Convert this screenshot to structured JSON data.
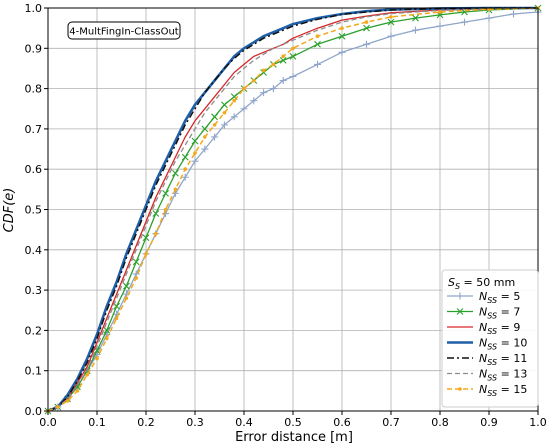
{
  "chart_data": {
    "type": "line",
    "xlabel": "Error distance [m]",
    "ylabel": "CDF(e)",
    "xlim": [
      0.0,
      1.0
    ],
    "ylim": [
      0.0,
      1.0
    ],
    "xticks": [
      "0.0",
      "0.1",
      "0.2",
      "0.3",
      "0.4",
      "0.5",
      "0.6",
      "0.7",
      "0.8",
      "0.9",
      "1.0"
    ],
    "yticks": [
      "0.0",
      "0.1",
      "0.2",
      "0.3",
      "0.4",
      "0.5",
      "0.6",
      "0.7",
      "0.8",
      "0.9",
      "1.0"
    ],
    "grid": true,
    "annotation": "4-MultFingIn-ClassOut",
    "legend_title": "S_S = 50 mm",
    "legend_position": "lower-right",
    "series": [
      {
        "name": "N_SS = 5",
        "color": "#8fa5c8",
        "dash": "",
        "width": 1.3,
        "marker": "plus",
        "x": [
          0.0,
          0.02,
          0.04,
          0.06,
          0.08,
          0.1,
          0.12,
          0.14,
          0.16,
          0.18,
          0.2,
          0.22,
          0.24,
          0.26,
          0.28,
          0.3,
          0.32,
          0.34,
          0.36,
          0.38,
          0.4,
          0.42,
          0.44,
          0.46,
          0.48,
          0.5,
          0.55,
          0.6,
          0.65,
          0.7,
          0.75,
          0.8,
          0.85,
          0.9,
          0.95,
          1.0
        ],
        "values": [
          0.0,
          0.01,
          0.03,
          0.06,
          0.1,
          0.14,
          0.19,
          0.24,
          0.29,
          0.34,
          0.39,
          0.44,
          0.49,
          0.54,
          0.58,
          0.62,
          0.65,
          0.68,
          0.71,
          0.73,
          0.75,
          0.77,
          0.79,
          0.8,
          0.82,
          0.83,
          0.86,
          0.89,
          0.91,
          0.93,
          0.945,
          0.955,
          0.965,
          0.975,
          0.985,
          0.99
        ]
      },
      {
        "name": "N_SS = 7",
        "color": "#2ca02c",
        "dash": "",
        "width": 1.3,
        "marker": "x",
        "x": [
          0.0,
          0.02,
          0.04,
          0.06,
          0.08,
          0.1,
          0.12,
          0.14,
          0.16,
          0.18,
          0.2,
          0.22,
          0.24,
          0.26,
          0.28,
          0.3,
          0.32,
          0.34,
          0.36,
          0.38,
          0.4,
          0.42,
          0.44,
          0.46,
          0.48,
          0.5,
          0.55,
          0.6,
          0.65,
          0.7,
          0.75,
          0.8,
          0.85,
          0.9,
          1.0
        ],
        "values": [
          0.0,
          0.01,
          0.03,
          0.06,
          0.1,
          0.15,
          0.2,
          0.26,
          0.31,
          0.37,
          0.43,
          0.49,
          0.54,
          0.59,
          0.63,
          0.67,
          0.7,
          0.73,
          0.76,
          0.78,
          0.8,
          0.82,
          0.84,
          0.86,
          0.87,
          0.88,
          0.91,
          0.93,
          0.95,
          0.965,
          0.975,
          0.983,
          0.99,
          0.995,
          1.0
        ]
      },
      {
        "name": "N_SS = 9",
        "color": "#d62728",
        "dash": "",
        "width": 1.3,
        "marker": "none",
        "x": [
          0.0,
          0.02,
          0.04,
          0.06,
          0.08,
          0.1,
          0.12,
          0.14,
          0.16,
          0.18,
          0.2,
          0.22,
          0.24,
          0.26,
          0.28,
          0.3,
          0.32,
          0.34,
          0.36,
          0.38,
          0.4,
          0.42,
          0.44,
          0.46,
          0.48,
          0.5,
          0.55,
          0.6,
          0.65,
          0.7,
          0.8,
          0.9,
          1.0
        ],
        "values": [
          0.0,
          0.01,
          0.03,
          0.07,
          0.11,
          0.17,
          0.23,
          0.29,
          0.35,
          0.41,
          0.47,
          0.53,
          0.58,
          0.63,
          0.68,
          0.72,
          0.75,
          0.78,
          0.81,
          0.84,
          0.86,
          0.88,
          0.89,
          0.9,
          0.91,
          0.925,
          0.95,
          0.97,
          0.98,
          0.988,
          0.995,
          0.998,
          1.0
        ]
      },
      {
        "name": "N_SS = 10",
        "color": "#1f5fa8",
        "dash": "",
        "width": 2.6,
        "marker": "none",
        "x": [
          0.0,
          0.02,
          0.04,
          0.06,
          0.08,
          0.1,
          0.12,
          0.14,
          0.16,
          0.18,
          0.2,
          0.22,
          0.24,
          0.26,
          0.28,
          0.3,
          0.32,
          0.34,
          0.36,
          0.38,
          0.4,
          0.42,
          0.44,
          0.46,
          0.48,
          0.5,
          0.55,
          0.6,
          0.65,
          0.7,
          0.8,
          0.9,
          1.0
        ],
        "values": [
          0.0,
          0.01,
          0.04,
          0.08,
          0.13,
          0.19,
          0.26,
          0.32,
          0.39,
          0.45,
          0.51,
          0.57,
          0.62,
          0.67,
          0.72,
          0.76,
          0.79,
          0.82,
          0.85,
          0.88,
          0.9,
          0.915,
          0.93,
          0.94,
          0.95,
          0.96,
          0.975,
          0.985,
          0.992,
          0.996,
          0.999,
          1.0,
          1.0
        ]
      },
      {
        "name": "N_SS = 11",
        "color": "#111111",
        "dash": "7,3,2,3",
        "width": 1.5,
        "marker": "none",
        "x": [
          0.0,
          0.02,
          0.04,
          0.06,
          0.08,
          0.1,
          0.12,
          0.14,
          0.16,
          0.18,
          0.2,
          0.22,
          0.24,
          0.26,
          0.28,
          0.3,
          0.32,
          0.34,
          0.36,
          0.38,
          0.4,
          0.42,
          0.44,
          0.46,
          0.48,
          0.5,
          0.55,
          0.6,
          0.65,
          0.7,
          0.8,
          0.9,
          1.0
        ],
        "values": [
          0.0,
          0.01,
          0.035,
          0.075,
          0.12,
          0.18,
          0.25,
          0.31,
          0.38,
          0.44,
          0.5,
          0.56,
          0.61,
          0.66,
          0.71,
          0.75,
          0.79,
          0.82,
          0.85,
          0.875,
          0.895,
          0.91,
          0.925,
          0.935,
          0.945,
          0.955,
          0.972,
          0.984,
          0.99,
          0.995,
          0.999,
          1.0,
          1.0
        ]
      },
      {
        "name": "N_SS = 13",
        "color": "#8c8c8c",
        "dash": "5,3",
        "width": 1.3,
        "marker": "none",
        "x": [
          0.0,
          0.02,
          0.04,
          0.06,
          0.08,
          0.1,
          0.12,
          0.14,
          0.16,
          0.18,
          0.2,
          0.22,
          0.24,
          0.26,
          0.28,
          0.3,
          0.32,
          0.34,
          0.36,
          0.38,
          0.4,
          0.42,
          0.44,
          0.46,
          0.48,
          0.5,
          0.55,
          0.6,
          0.65,
          0.7,
          0.8,
          0.9,
          1.0
        ],
        "values": [
          0.0,
          0.01,
          0.03,
          0.065,
          0.1,
          0.16,
          0.22,
          0.28,
          0.34,
          0.4,
          0.46,
          0.52,
          0.57,
          0.62,
          0.66,
          0.7,
          0.74,
          0.77,
          0.8,
          0.83,
          0.85,
          0.87,
          0.885,
          0.9,
          0.91,
          0.92,
          0.945,
          0.965,
          0.978,
          0.986,
          0.994,
          0.998,
          1.0
        ]
      },
      {
        "name": "N_SS = 15",
        "color": "#f4a81c",
        "dash": "5,3",
        "width": 1.5,
        "marker": "dot",
        "x": [
          0.0,
          0.02,
          0.04,
          0.06,
          0.08,
          0.1,
          0.12,
          0.14,
          0.16,
          0.18,
          0.2,
          0.22,
          0.24,
          0.26,
          0.28,
          0.3,
          0.32,
          0.34,
          0.36,
          0.38,
          0.4,
          0.42,
          0.44,
          0.46,
          0.48,
          0.5,
          0.55,
          0.6,
          0.65,
          0.7,
          0.8,
          0.9,
          1.0
        ],
        "values": [
          0.0,
          0.01,
          0.025,
          0.05,
          0.09,
          0.13,
          0.18,
          0.23,
          0.28,
          0.33,
          0.39,
          0.44,
          0.5,
          0.55,
          0.6,
          0.64,
          0.68,
          0.71,
          0.74,
          0.77,
          0.8,
          0.82,
          0.845,
          0.86,
          0.88,
          0.9,
          0.93,
          0.95,
          0.965,
          0.978,
          0.99,
          0.997,
          1.0
        ]
      }
    ]
  }
}
